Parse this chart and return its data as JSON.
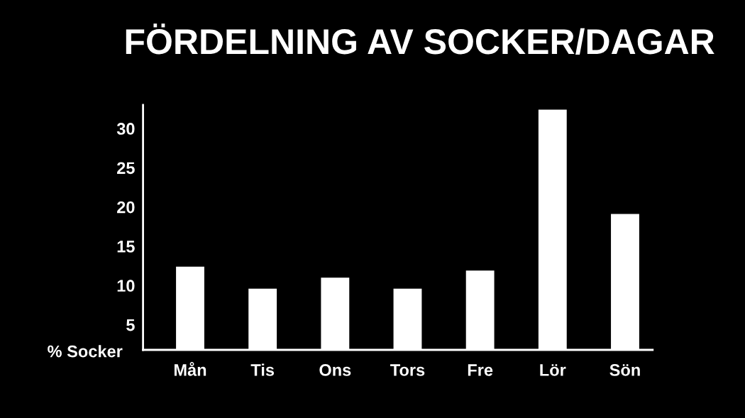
{
  "chart_data": {
    "type": "bar",
    "title": "FÖRDELNING AV SOCKER/DAGAR",
    "ylabel": "% Socker",
    "categories": [
      "Mån",
      "Tis",
      "Ons",
      "Tors",
      "Fre",
      "Lör",
      "Sön"
    ],
    "values": [
      12.4,
      9.6,
      11.0,
      9.6,
      11.9,
      32.4,
      19.1
    ],
    "color": "#ffffff",
    "ylim": [
      1.8,
      33
    ],
    "yticks": [
      5,
      10,
      15,
      20,
      25,
      30
    ]
  }
}
